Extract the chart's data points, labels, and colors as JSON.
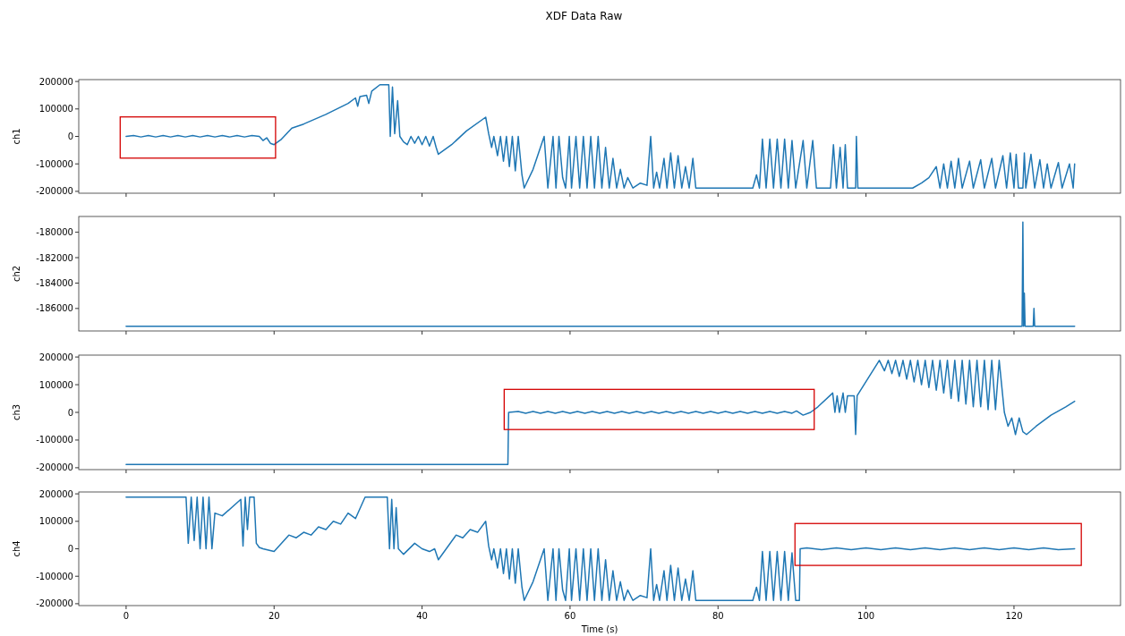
{
  "chart_data": [
    {
      "type": "line",
      "title": "XDF Data Raw",
      "ylabel": "ch1",
      "xlim": [
        -6.4,
        134.4
      ],
      "xticks": [
        0,
        20,
        40,
        60,
        80,
        100,
        120
      ],
      "ylim": [
        -206800,
        206800
      ],
      "yticks": [
        -200000,
        -100000,
        0,
        100000,
        200000
      ],
      "tick_labels": "y",
      "x": [
        0,
        1,
        2,
        3,
        4,
        5,
        6,
        7,
        8,
        9,
        10,
        11,
        12,
        13,
        14,
        15,
        16,
        17,
        18,
        18.5,
        19,
        19.5,
        20,
        21,
        22.4,
        24,
        27,
        30,
        31,
        31.3,
        31.6,
        32.5,
        32.8,
        33.2,
        34.3,
        35.5,
        35.7,
        36,
        36.3,
        36.7,
        37,
        37.5,
        38,
        38.5,
        39,
        39.5,
        40,
        40.5,
        41,
        41.5,
        41.9,
        42.2,
        44,
        46,
        48.6,
        49,
        49.4,
        49.7,
        50.2,
        50.6,
        51,
        51.4,
        51.8,
        52.2,
        52.6,
        53,
        53.5,
        53.8,
        55,
        56.5,
        57,
        57.7,
        58.1,
        58.5,
        59,
        59.4,
        59.9,
        60.2,
        60.8,
        61.3,
        61.8,
        62.3,
        62.8,
        63.3,
        63.8,
        64.3,
        64.8,
        65.3,
        65.8,
        66.3,
        66.8,
        67.3,
        67.8,
        68.5,
        69.5,
        70.4,
        70.9,
        71.3,
        71.7,
        72.1,
        72.7,
        73.1,
        73.6,
        74.1,
        74.6,
        75.1,
        75.6,
        76.1,
        76.6,
        77,
        84.7,
        85.2,
        85.6,
        86,
        86.5,
        87,
        87.5,
        88,
        88.5,
        89,
        89.5,
        90,
        90.5,
        91.5,
        92,
        92.8,
        93.3,
        95.2,
        95.6,
        96,
        96.5,
        96.9,
        97.2,
        97.5,
        98.6,
        98.7,
        98.9,
        106.3,
        107.5,
        108.5,
        109.5,
        110,
        110.5,
        111,
        111.5,
        112,
        112.5,
        113,
        114,
        114.5,
        115.5,
        116,
        117,
        117.5,
        118.5,
        119,
        119.5,
        120,
        120.3,
        120.6,
        121.2,
        121.4,
        121.6,
        122.3,
        122.8,
        123.5,
        124,
        124.5,
        125,
        126,
        126.5,
        127.5,
        128,
        128.2
      ],
      "series": [
        {
          "color": "#1f77b4",
          "values": [
            0,
            3000,
            -2000,
            3000,
            -2000,
            3000,
            -2000,
            3000,
            -2000,
            3000,
            -2000,
            3000,
            -2000,
            3000,
            -2000,
            3000,
            -2000,
            3000,
            0,
            -15000,
            -5000,
            -25000,
            -30000,
            -10000,
            30000,
            45000,
            80000,
            120000,
            140000,
            110000,
            145000,
            150000,
            120000,
            165000,
            188000,
            188000,
            0,
            180000,
            10000,
            130000,
            0,
            -20000,
            -30000,
            0,
            -25000,
            0,
            -30000,
            0,
            -35000,
            0,
            -40000,
            -65000,
            -30000,
            20000,
            70000,
            10000,
            -40000,
            0,
            -70000,
            0,
            -90000,
            0,
            -110000,
            0,
            -125000,
            0,
            -140000,
            -188000,
            -120000,
            0,
            -188000,
            0,
            -188000,
            0,
            -150000,
            -188000,
            0,
            -188000,
            0,
            -188000,
            0,
            -188000,
            0,
            -188000,
            0,
            -188000,
            -40000,
            -188000,
            -80000,
            -188000,
            -120000,
            -188000,
            -150000,
            -188000,
            -170000,
            -178000,
            0,
            -188000,
            -130000,
            -188000,
            -80000,
            -188000,
            -60000,
            -188000,
            -70000,
            -188000,
            -110000,
            -188000,
            -80000,
            -188000,
            -188000,
            -140000,
            -188000,
            -10000,
            -188000,
            -10000,
            -188000,
            -10000,
            -188000,
            -10000,
            -188000,
            -15000,
            -188000,
            -15000,
            -188000,
            -15000,
            -188000,
            -188000,
            -30000,
            -188000,
            -40000,
            -188000,
            -30000,
            -188000,
            -188000,
            0,
            -188000,
            -188000,
            -170000,
            -150000,
            -110000,
            -188000,
            -100000,
            -188000,
            -90000,
            -188000,
            -80000,
            -188000,
            -90000,
            -188000,
            -85000,
            -188000,
            -80000,
            -188000,
            -70000,
            -188000,
            -60000,
            -188000,
            -65000,
            -188000,
            -188000,
            -60000,
            -188000,
            -65000,
            -188000,
            -85000,
            -188000,
            -100000,
            -188000,
            -95000,
            -188000,
            -100000,
            -188000,
            -100000
          ]
        }
      ]
    },
    {
      "type": "line",
      "ylabel": "ch2",
      "xlim": [
        -6.4,
        134.4
      ],
      "xticks": [
        0,
        20,
        40,
        60,
        80,
        100,
        120
      ],
      "ylim": [
        -187770,
        -178760
      ],
      "yticks": [
        -186000,
        -184000,
        -182000,
        -180000
      ],
      "tick_labels": "y",
      "x": [
        0,
        121.1,
        121.2,
        121.3,
        121.4,
        121.5,
        122.6,
        122.7,
        122.8,
        128.2
      ],
      "series": [
        {
          "color": "#1f77b4",
          "values": [
            -187400,
            -187400,
            -179200,
            -187400,
            -184800,
            -187400,
            -187400,
            -186000,
            -187400,
            -187400
          ]
        }
      ]
    },
    {
      "type": "line",
      "ylabel": "ch3",
      "xlim": [
        -6.4,
        134.4
      ],
      "xticks": [
        0,
        20,
        40,
        60,
        80,
        100,
        120
      ],
      "ylim": [
        -206800,
        206800
      ],
      "yticks": [
        -200000,
        -100000,
        0,
        100000,
        200000
      ],
      "tick_labels": "y",
      "x": [
        0,
        51.6,
        51.7,
        53,
        54,
        55,
        56,
        57,
        58,
        59,
        60,
        61,
        62,
        63,
        64,
        65,
        66,
        67,
        68,
        69,
        70,
        71,
        72,
        73,
        74,
        75,
        76,
        77,
        78,
        79,
        80,
        81,
        82,
        83,
        84,
        85,
        86,
        87,
        88,
        89,
        90,
        90.6,
        91.5,
        92.5,
        93.5,
        95.5,
        95.8,
        96.1,
        96.4,
        96.9,
        97.2,
        97.5,
        98.4,
        98.6,
        98.8,
        101.8,
        102.5,
        103,
        103.5,
        104,
        104.5,
        105,
        105.5,
        106,
        106.5,
        107,
        107.5,
        108,
        108.5,
        109,
        109.5,
        110,
        110.5,
        111,
        111.5,
        112,
        112.5,
        113,
        113.5,
        114,
        114.5,
        115,
        115.5,
        116,
        116.5,
        117,
        117.5,
        118,
        118.7,
        119.2,
        119.7,
        120.2,
        120.7,
        121.2,
        121.7,
        123,
        125,
        127,
        128.2
      ],
      "series": [
        {
          "color": "#1f77b4",
          "values": [
            -188000,
            -188000,
            0,
            3000,
            -3000,
            3000,
            -3000,
            3000,
            -3000,
            3000,
            -3000,
            3000,
            -3000,
            3000,
            -3000,
            3000,
            -3000,
            3000,
            -3000,
            3000,
            -3000,
            3000,
            -3000,
            3000,
            -3000,
            3000,
            -3000,
            3000,
            -3000,
            3000,
            -3000,
            3000,
            -3000,
            3000,
            -3000,
            3000,
            -3000,
            3000,
            -3000,
            3000,
            -3000,
            5000,
            -10000,
            0,
            20000,
            70000,
            0,
            60000,
            0,
            70000,
            0,
            60000,
            60000,
            -80000,
            60000,
            188000,
            150000,
            188000,
            140000,
            188000,
            130000,
            188000,
            120000,
            188000,
            110000,
            188000,
            100000,
            188000,
            90000,
            188000,
            80000,
            188000,
            70000,
            188000,
            50000,
            188000,
            40000,
            188000,
            30000,
            188000,
            20000,
            188000,
            20000,
            188000,
            10000,
            188000,
            10000,
            188000,
            0,
            -50000,
            -20000,
            -80000,
            -20000,
            -70000,
            -80000,
            -50000,
            -10000,
            20000,
            40000
          ]
        }
      ]
    },
    {
      "type": "line",
      "ylabel": "ch4",
      "xlabel": "Time (s)",
      "xlim": [
        -6.4,
        134.4
      ],
      "xticks": [
        0,
        20,
        40,
        60,
        80,
        100,
        120
      ],
      "ylim": [
        -206800,
        206800
      ],
      "yticks": [
        -200000,
        -100000,
        0,
        100000,
        200000
      ],
      "x": [
        0,
        8.1,
        8.4,
        8.8,
        9.2,
        9.6,
        10,
        10.4,
        10.8,
        11.2,
        11.6,
        12,
        13,
        15.5,
        15.8,
        16.1,
        16.4,
        16.7,
        17.3,
        17.6,
        18,
        18.5,
        20,
        22,
        23,
        24,
        25,
        26,
        27,
        28,
        29,
        30,
        31,
        32.3,
        35.3,
        35.6,
        35.9,
        36.2,
        36.5,
        36.8,
        37.5,
        39,
        40,
        41,
        41.7,
        42.2,
        44.6,
        45.5,
        46.5,
        47.5,
        48.6,
        49,
        49.4,
        49.7,
        50.2,
        50.6,
        51,
        51.4,
        51.8,
        52.2,
        52.6,
        53,
        53.5,
        53.8,
        55,
        56.5,
        57,
        57.7,
        58.1,
        58.5,
        59,
        59.4,
        59.9,
        60.2,
        60.8,
        61.3,
        61.8,
        62.3,
        62.8,
        63.3,
        63.8,
        64.3,
        64.8,
        65.3,
        65.8,
        66.3,
        66.8,
        67.3,
        67.8,
        68.5,
        69.5,
        70.4,
        70.9,
        71.3,
        71.7,
        72.1,
        72.7,
        73.1,
        73.6,
        74.1,
        74.6,
        75.1,
        75.6,
        76.1,
        76.6,
        77,
        84.7,
        85.2,
        85.6,
        86,
        86.5,
        87,
        87.5,
        88,
        88.5,
        89,
        89.5,
        90,
        90.5,
        91,
        91.1,
        92,
        94,
        96,
        98,
        100,
        102,
        104,
        106,
        108,
        110,
        112,
        114,
        116,
        118,
        120,
        122,
        124,
        126,
        128.2
      ],
      "series": [
        {
          "color": "#1f77b4",
          "values": [
            188000,
            188000,
            20000,
            188000,
            30000,
            188000,
            0,
            188000,
            0,
            188000,
            0,
            130000,
            120000,
            180000,
            10000,
            188000,
            70000,
            188000,
            188000,
            20000,
            5000,
            0,
            -10000,
            50000,
            40000,
            60000,
            50000,
            80000,
            70000,
            100000,
            90000,
            130000,
            110000,
            188000,
            188000,
            0,
            180000,
            0,
            150000,
            0,
            -20000,
            20000,
            0,
            -10000,
            0,
            -40000,
            50000,
            40000,
            70000,
            60000,
            100000,
            10000,
            -40000,
            0,
            -70000,
            0,
            -90000,
            0,
            -110000,
            0,
            -125000,
            0,
            -140000,
            -188000,
            -120000,
            0,
            -188000,
            0,
            -188000,
            0,
            -150000,
            -188000,
            0,
            -188000,
            0,
            -188000,
            0,
            -188000,
            0,
            -188000,
            0,
            -188000,
            -40000,
            -188000,
            -80000,
            -188000,
            -120000,
            -188000,
            -150000,
            -188000,
            -170000,
            -178000,
            0,
            -188000,
            -130000,
            -188000,
            -80000,
            -188000,
            -60000,
            -188000,
            -70000,
            -188000,
            -110000,
            -188000,
            -80000,
            -188000,
            -188000,
            -140000,
            -188000,
            -10000,
            -188000,
            -10000,
            -188000,
            -10000,
            -188000,
            -10000,
            -188000,
            -15000,
            -188000,
            -188000,
            0,
            3000,
            -3000,
            3000,
            -3000,
            3000,
            -3000,
            3000,
            -3000,
            3000,
            -3000,
            3000,
            -3000,
            3000,
            -3000,
            3000,
            -3000,
            3000,
            -3000,
            0
          ]
        }
      ]
    }
  ]
}
